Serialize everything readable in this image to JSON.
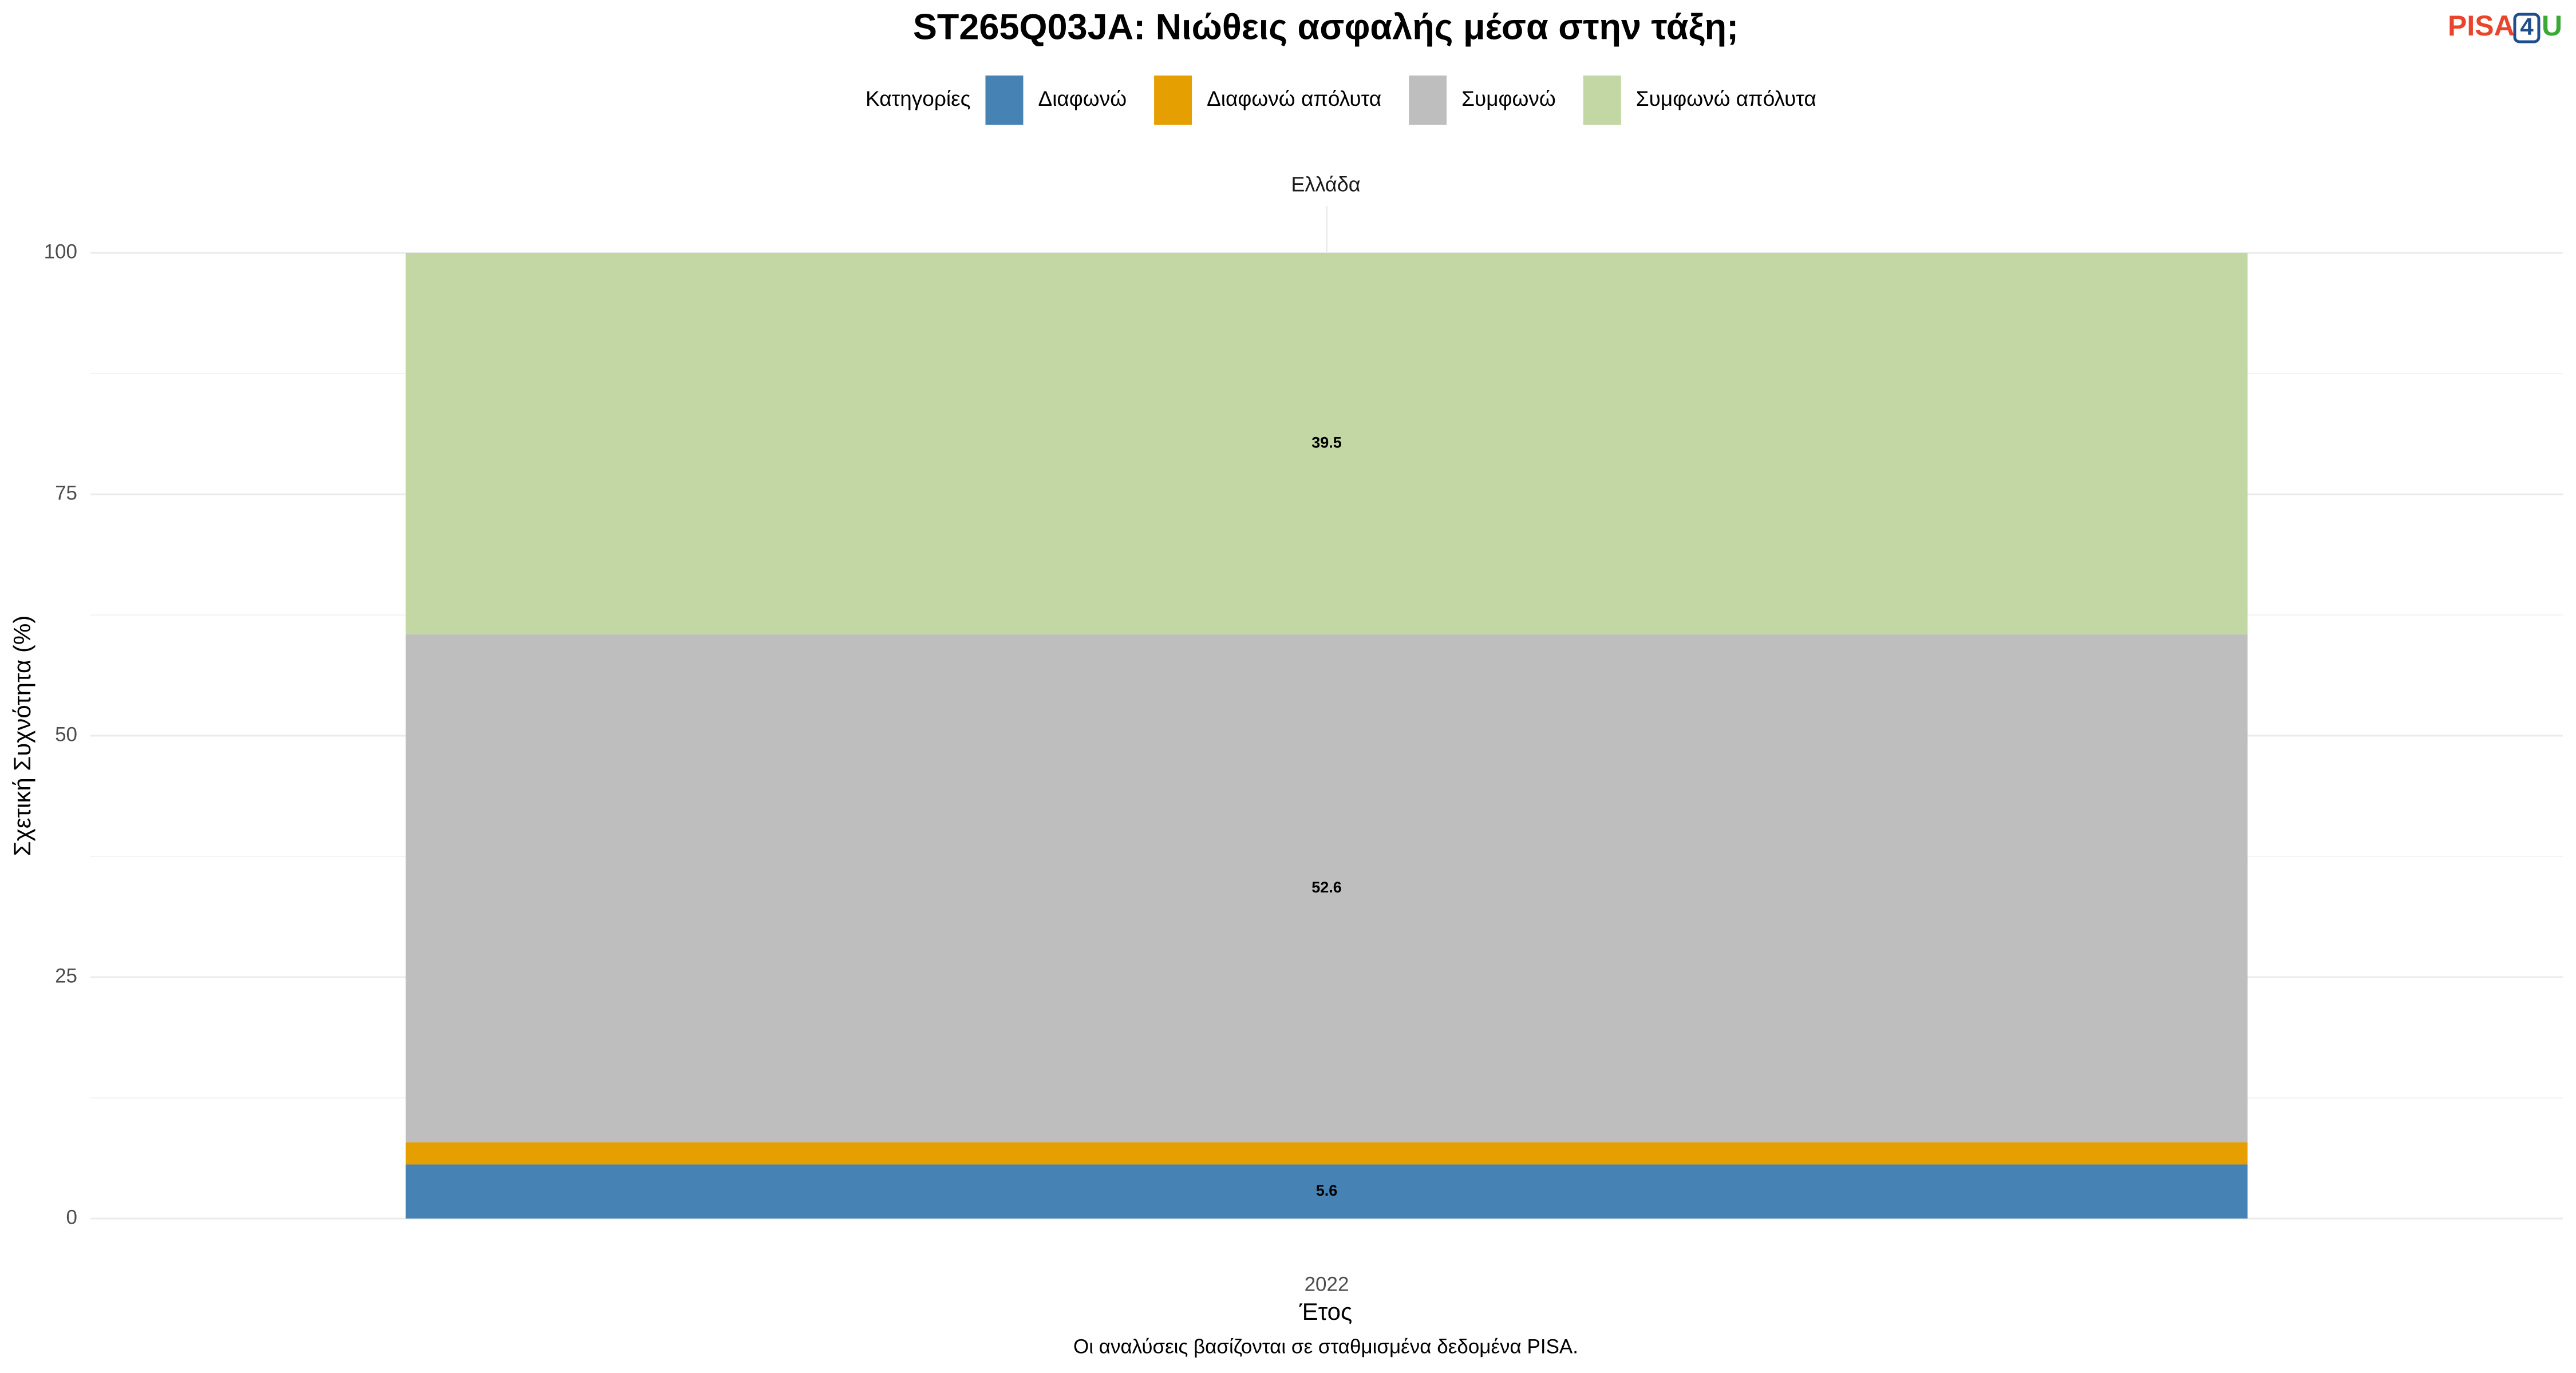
{
  "chart_data": {
    "type": "stacked-bar",
    "title": "ST265Q03JA: Νιώθεις ασφαλής μέσα στην τάξη;",
    "legend_title": "Κατηγορίες",
    "facet": "Ελλάδα",
    "y_label": "Σχετική Συχνότητα (%)",
    "x_label": "Έτος",
    "caption": "Οι αναλύσεις βασίζονται σε σταθμισμένα δεδομένα PISA.",
    "logo": [
      "PISA",
      "4",
      "U"
    ],
    "categories": [
      "2022"
    ],
    "series": [
      {
        "name": "Διαφωνώ",
        "color": "#4682b4",
        "values": [
          5.6
        ]
      },
      {
        "name": "Διαφωνώ απόλυτα",
        "color": "#e69f00",
        "values": [
          2.3
        ]
      },
      {
        "name": "Συμφωνώ",
        "color": "#bebebe",
        "values": [
          52.6
        ]
      },
      {
        "name": "Συμφωνώ απόλυτα",
        "color": "#c3d7a4",
        "values": [
          39.5
        ]
      }
    ],
    "ylim": [
      0,
      100
    ],
    "yticks": [
      0,
      25,
      50,
      75,
      100
    ],
    "grid": true,
    "legend": "top"
  }
}
